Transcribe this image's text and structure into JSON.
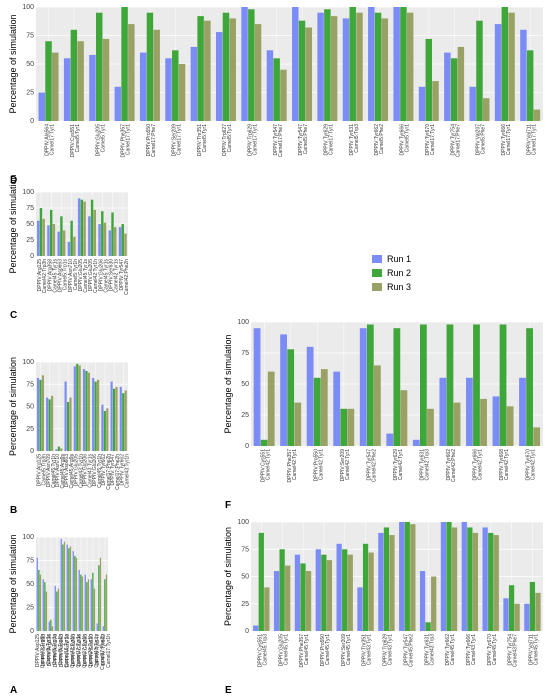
{
  "legend": {
    "series": [
      {
        "label": "Run 1",
        "color": "#7b8cf6"
      },
      {
        "label": "Run 2",
        "color": "#3fa63a"
      },
      {
        "label": "Run 3",
        "color": "#9aa164"
      }
    ]
  },
  "chart_data": [
    {
      "panel": "A",
      "type": "bar",
      "ylabel": "Percentage of simulation",
      "ylim": [
        0,
        100
      ],
      "yticks": [
        0,
        25,
        50,
        75,
        100
      ],
      "grid": true,
      "categories": [
        "DPPIV:Asp125 Camel43:Trp3h",
        "DPPIV:Ser158 Camel5:Tyr1s",
        "DPPIV:Arg336 Camel5:Trp1s",
        "DPPIV:Asn170 Camel5:Trp1h",
        "DPPIV:Asp663 Camel17:Tyr1s",
        "DPPIV:Asn710 Camel43:Tyr1h",
        "DPPIV:Glu205 Camel17:Tyr1s",
        "DPPIV:Glu206 Camel17:Tyr1h",
        "DPPIV:Glu206 Camel20:Tyr1h",
        "DPPIV:Ser630 Camel43:Tyr1s",
        "DPPIV:Tyr547 Camel17:Phe2h",
        "DPPIV:Tyr662 Camel17:Tyr1h"
      ],
      "series": [
        {
          "name": "Run 1",
          "values": [
            78,
            55,
            10,
            48,
            98,
            92,
            85,
            65,
            60,
            55,
            8,
            5
          ]
        },
        {
          "name": "Run 2",
          "values": [
            65,
            52,
            12,
            42,
            92,
            88,
            80,
            60,
            52,
            62,
            70,
            55
          ]
        },
        {
          "name": "Run 3",
          "values": [
            60,
            42,
            5,
            45,
            95,
            90,
            78,
            58,
            55,
            45,
            78,
            60
          ]
        }
      ]
    },
    {
      "panel": "B",
      "type": "bar",
      "ylabel": "Percentage of simulation",
      "ylim": [
        0,
        100
      ],
      "yticks": [
        0,
        25,
        50,
        75,
        100
      ],
      "grid": true,
      "categories": [
        "DPPIV:Arg125 Camel5:Trp3h",
        "DPPIV:Asn709 Camel45:Tyr1h",
        "DPPIV:Asn710 Camel45:Arg9s",
        "DPPIV:Asp663 Camel45:Arg9s",
        "DPPIV:Glu205 Camel43:Tyr1h",
        "DPPIV:Glu206 Camel43:Tyr1s",
        "DPPIV:Glu206 Camel45:Tyr1h",
        "DPPIV:Tyr662 Camel17:Phe2h",
        "DPPIV:Tyr547 Camel17:Phe2h",
        "DPPIV:Tyr662 Camel43:Tyr1h"
      ],
      "series": [
        {
          "name": "Run 1",
          "values": [
            82,
            60,
            2,
            78,
            95,
            92,
            82,
            52,
            78,
            72
          ]
        },
        {
          "name": "Run 2",
          "values": [
            80,
            58,
            5,
            55,
            98,
            90,
            78,
            45,
            70,
            65
          ]
        },
        {
          "name": "Run 3",
          "values": [
            85,
            62,
            3,
            60,
            96,
            88,
            80,
            48,
            72,
            68
          ]
        }
      ]
    },
    {
      "panel": "C",
      "type": "bar",
      "ylabel": "Percentage of simulation",
      "ylim": [
        0,
        100
      ],
      "yticks": [
        0,
        25,
        50,
        75,
        100
      ],
      "grid": true,
      "categories": [
        "DPPIV:Arg125 Camel42:Trp3h",
        "DPPIV:Arg358 Camel45:Tyr1s",
        "DPPIV:Asp663 Camel5:Trp1s",
        "DPPIV:Asn710 Camel5:Tyr1h",
        "DPPIV:Glu205 Camel45:Tyr1s",
        "DPPIV:Glu205 Camel42:Tyr1h",
        "DPPIV:Glu206 Camel45:Tyr1s",
        "DPPIV:Ser630 Camel42:Tyr1s",
        "DPPIV:Tyr547 Camel42:Phe2h"
      ],
      "series": [
        {
          "name": "Run 1",
          "values": [
            55,
            48,
            38,
            22,
            90,
            62,
            50,
            40,
            45
          ]
        },
        {
          "name": "Run 2",
          "values": [
            75,
            72,
            62,
            55,
            88,
            88,
            70,
            68,
            50
          ]
        },
        {
          "name": "Run 3",
          "values": [
            58,
            50,
            40,
            30,
            85,
            72,
            52,
            45,
            35
          ]
        }
      ]
    },
    {
      "panel": "D",
      "type": "bar",
      "ylabel": "Percentage of simulation",
      "ylim": [
        0,
        100
      ],
      "yticks": [
        0,
        25,
        50,
        75,
        100
      ],
      "grid": true,
      "categories": [
        "DPPIV:Ala564 Camel17:Tyr1",
        "DPPIV:Cys551 Camel5:Tyr1",
        "DPPIV:Glu205 Camel5:Tyr1",
        "DPPIV:Phe357 Camel17:Tyr1",
        "DPPIV:Pro550 Camel17:Phe7",
        "DPPIV:Ser209 Camel17:Tyr1",
        "DPPIV:Thr351 Camel5:Tyr1",
        "DPPIV:Trp627 Camel5:Tyr1",
        "DPPIV:Trp629 Camel17:Tyr1",
        "DPPIV:Tyr547 Camel17:Phe7",
        "DPPIV:Tyr547 Camel5:Phe7",
        "DPPIV:Tyr629 Camel17:Tyr1",
        "DPPIV:Tyr631 Camel5:Trp3",
        "DPPIV:Tyr662 Camel5:Phe2",
        "DPPIV:Tyr666 Camel5:Tyr1",
        "DPPIV:Tyr670 Camel17:Tyr1",
        "DPPIV:Tyr754 Camel17:Phe7",
        "DPPIV:Val207 Camel5:Phe7",
        "DPPIV:Tyr666 Camel17:Tyr1",
        "DPPIV:Val711 Camel17:Tyr1"
      ],
      "series": [
        {
          "name": "Run 1",
          "values": [
            25,
            55,
            58,
            30,
            60,
            55,
            65,
            78,
            100,
            62,
            100,
            95,
            90,
            100,
            100,
            30,
            60,
            30,
            85,
            80
          ]
        },
        {
          "name": "Run 2",
          "values": [
            70,
            80,
            95,
            100,
            95,
            62,
            92,
            95,
            98,
            55,
            88,
            98,
            100,
            95,
            100,
            72,
            55,
            88,
            100,
            62
          ]
        },
        {
          "name": "Run 3",
          "values": [
            60,
            70,
            72,
            85,
            80,
            50,
            88,
            90,
            85,
            45,
            82,
            92,
            95,
            90,
            95,
            35,
            65,
            20,
            95,
            10
          ]
        }
      ]
    },
    {
      "panel": "E",
      "type": "bar",
      "ylabel": "Percentage of simulation",
      "ylim": [
        0,
        100
      ],
      "yticks": [
        0,
        25,
        50,
        75,
        100
      ],
      "grid": true,
      "categories": [
        "DPPIV:Cys551 Camel45:Trp3",
        "DPPIV:Glu205 Camel45:Tyr1",
        "DPPIV:Phe357 Camel45:Tyr1",
        "DPPIV:Pro550 Camel45:Tyr1",
        "DPPIV:Ser209 Camel45:Tyr1",
        "DPPIV:Thr351 Camel43:Tyr1",
        "DPPIV:Trp629 Camel43:Tyr1",
        "DPPIV:Tyr547 Camel45:Phe2",
        "DPPIV:Tyr631 Camel43:Trp3",
        "DPPIV:Tyr662 Camel45:Tyr1",
        "DPPIV:Tyr666 Camel43:Tyr1",
        "DPPIV:Tyr670 Camel45:Tyr1",
        "DPPIV:Tyr754 Camel43:Phe7",
        "DPPIV:Val711 Camel45:Tyr1"
      ],
      "series": [
        {
          "name": "Run 1",
          "values": [
            5,
            55,
            70,
            75,
            80,
            40,
            90,
            100,
            55,
            100,
            100,
            95,
            30,
            25
          ]
        },
        {
          "name": "Run 2",
          "values": [
            90,
            75,
            62,
            70,
            75,
            80,
            95,
            100,
            8,
            100,
            95,
            90,
            42,
            45
          ]
        },
        {
          "name": "Run 3",
          "values": [
            40,
            60,
            55,
            65,
            70,
            72,
            88,
            98,
            50,
            95,
            90,
            88,
            25,
            35
          ]
        }
      ]
    },
    {
      "panel": "F",
      "type": "bar",
      "ylabel": "Percentage of simulation",
      "ylim": [
        0,
        100
      ],
      "yticks": [
        0,
        25,
        50,
        75,
        100
      ],
      "grid": true,
      "categories": [
        "DPPIV:Cys551 Camel42:Tyr1",
        "DPPIV:Phe357 Camel42:Tyr1",
        "DPPIV:Pro550 Camel42:Tyr1",
        "DPPIV:Ser209 Camel42:Tyr1",
        "DPPIV:Tyr547 Camel42:Phe2",
        "DPPIV:Tyr629 Camel42:Tyr1",
        "DPPIV:Tyr631 Camel42:Trp3",
        "DPPIV:Tyr662 Camel42:Phe2",
        "DPPIV:Tyr666 Camel42:Tyr1",
        "DPPIV:Tyr668 Camel42:Tyr1",
        "DPPIV:Tyr670 Camel42:Tyr1"
      ],
      "series": [
        {
          "name": "Run 1",
          "values": [
            95,
            90,
            80,
            60,
            95,
            10,
            5,
            55,
            55,
            40,
            55
          ]
        },
        {
          "name": "Run 2",
          "values": [
            5,
            78,
            55,
            30,
            98,
            95,
            98,
            98,
            98,
            98,
            95
          ]
        },
        {
          "name": "Run 3",
          "values": [
            60,
            35,
            62,
            30,
            65,
            45,
            30,
            35,
            38,
            32,
            15
          ]
        }
      ]
    }
  ]
}
